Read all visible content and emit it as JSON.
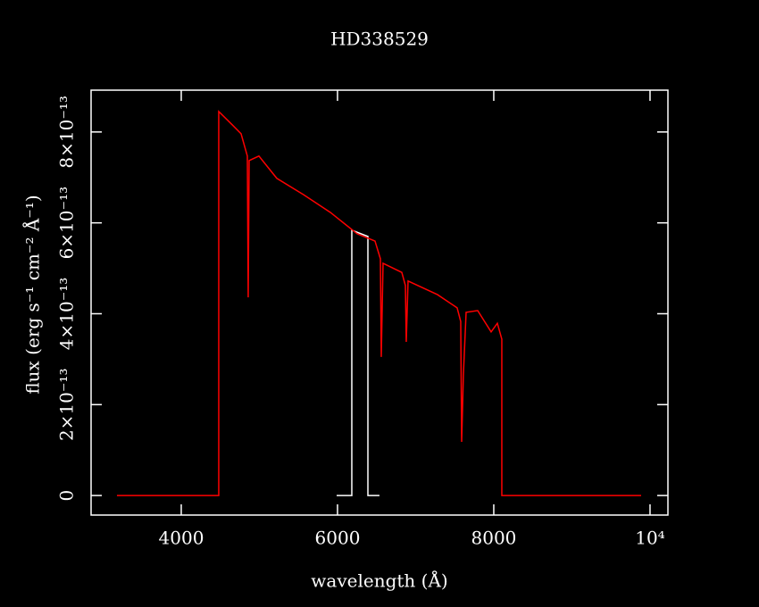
{
  "chart_data": {
    "type": "line",
    "title": "HD338529",
    "x_label": "wavelength (Å)",
    "y_label": "flux (erg s⁻¹ cm⁻² Å⁻¹)",
    "xlim": [
      2846,
      10229
    ],
    "ylim": [
      -4.3e-14,
      8.92e-13
    ],
    "xticks": [
      4000,
      6000,
      8000,
      {
        "value": 10000,
        "label": "10⁴"
      }
    ],
    "yticks": [
      0,
      {
        "value": 2e-13,
        "label": "2×10⁻¹³"
      },
      {
        "value": 4e-13,
        "label": "4×10⁻¹³"
      },
      {
        "value": 6e-13,
        "label": "6×10⁻¹³"
      },
      {
        "value": 8e-13,
        "label": "8×10⁻¹³"
      }
    ],
    "series": [
      {
        "color": "#ffffff",
        "x": [
          5989,
          6183,
          6183,
          6389,
          6389,
          6537
        ],
        "values": [
          0,
          0,
          5.84e-13,
          5.7e-13,
          0,
          0
        ]
      },
      {
        "color": "#ff0000",
        "x": [
          3177,
          4480,
          4480,
          4651,
          4766,
          4846,
          4857,
          4869,
          4994,
          5223,
          5566,
          5909,
          6251,
          6480,
          6549,
          6560,
          6583,
          6823,
          6869,
          6880,
          6903,
          7280,
          7531,
          7577,
          7589,
          7611,
          7646,
          7794,
          7966,
          8046,
          8103,
          8103,
          9886
        ],
        "values": [
          0,
          0,
          8.45e-13,
          8.16e-13,
          7.96e-13,
          7.47e-13,
          4.36e-13,
          7.37e-13,
          7.47e-13,
          6.98e-13,
          6.62e-13,
          6.23e-13,
          5.76e-13,
          5.6e-13,
          5.21e-13,
          3.05e-13,
          5.11e-13,
          4.91e-13,
          4.62e-13,
          3.38e-13,
          4.72e-13,
          4.42e-13,
          4.13e-13,
          3.83e-13,
          1.18e-13,
          2.65e-13,
          4.03e-13,
          4.07e-13,
          3.6e-13,
          3.79e-13,
          3.44e-13,
          0,
          0
        ]
      }
    ]
  }
}
